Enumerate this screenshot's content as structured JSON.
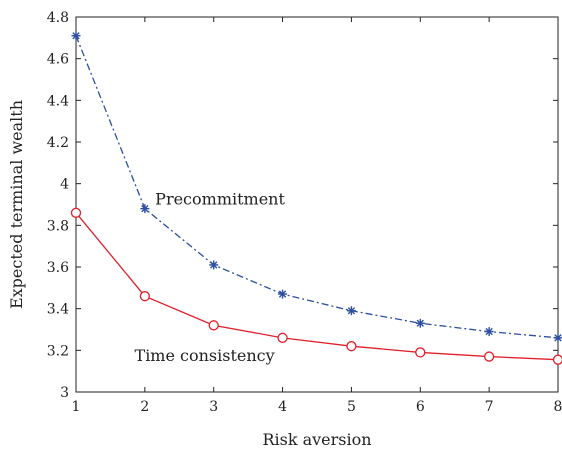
{
  "chart_data": {
    "type": "line",
    "xlabel": "Risk aversion",
    "ylabel": "Expected terminal wealth",
    "x": [
      1,
      2,
      3,
      4,
      5,
      6,
      7,
      8
    ],
    "xlim": [
      1,
      8
    ],
    "ylim": [
      3,
      4.8
    ],
    "xticks": [
      "1",
      "2",
      "3",
      "4",
      "5",
      "6",
      "7",
      "8"
    ],
    "yticks": [
      "3",
      "3.2",
      "3.4",
      "3.6",
      "3.8",
      "4",
      "4.2",
      "4.4",
      "4.6",
      "4.8"
    ],
    "grid": false,
    "legend": "none",
    "series": [
      {
        "name": "Precommitment",
        "values": [
          4.71,
          3.88,
          3.61,
          3.47,
          3.39,
          3.33,
          3.29,
          3.26
        ],
        "color": "#2c4fa0",
        "line_style": "dash-dot",
        "marker": "asterisk"
      },
      {
        "name": "Time consistency",
        "values": [
          3.86,
          3.46,
          3.32,
          3.26,
          3.22,
          3.19,
          3.17,
          3.155
        ],
        "color": "#e0202a",
        "line_style": "solid",
        "marker": "circle"
      }
    ],
    "annotations": [
      {
        "text": "Precommitment",
        "x": 2.15,
        "y": 3.9
      },
      {
        "text": "Time consistency",
        "x": 1.85,
        "y": 3.15
      }
    ]
  }
}
